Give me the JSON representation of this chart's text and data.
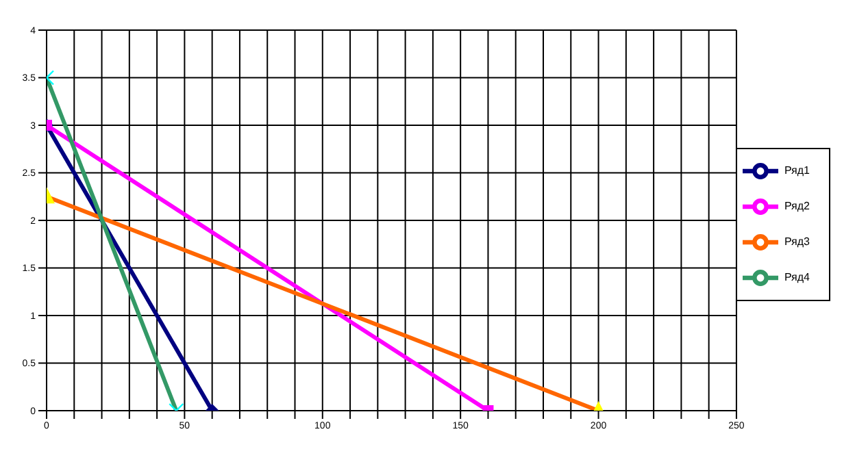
{
  "chart_data": {
    "type": "line",
    "series": [
      {
        "name": "Ряд1",
        "color": "#000080",
        "marker": "diamond",
        "x": [
          0,
          60
        ],
        "values": [
          3,
          0
        ]
      },
      {
        "name": "Ряд2",
        "color": "#ff00ff",
        "marker": "square",
        "x": [
          0,
          160
        ],
        "values": [
          3,
          0
        ]
      },
      {
        "name": "Ряд3",
        "color": "#ff6600",
        "marker": "triangle",
        "colors": [
          "#ffff00",
          "#ffff00"
        ],
        "x": [
          0,
          200
        ],
        "values": [
          2.25,
          0
        ]
      },
      {
        "name": "Ряд4",
        "color": "#339966",
        "marker": "cross",
        "colors": [
          "#00ffff",
          "#00ffff"
        ],
        "x": [
          0,
          47
        ],
        "values": [
          3.5,
          0
        ]
      }
    ],
    "xlim": [
      0,
      250
    ],
    "xticks": [
      0,
      {
        "value": 10,
        "label": null
      },
      {
        "value": 20,
        "label": null
      },
      {
        "value": 30,
        "label": null
      },
      {
        "value": 40,
        "label": null
      },
      50,
      {
        "value": 60,
        "label": null
      },
      {
        "value": 70,
        "label": null
      },
      {
        "value": 80,
        "label": null
      },
      {
        "value": 90,
        "label": null
      },
      100,
      {
        "value": 110,
        "label": null
      },
      {
        "value": 120,
        "label": null
      },
      {
        "value": 130,
        "label": null
      },
      {
        "value": 140,
        "label": null
      },
      150,
      {
        "value": 160,
        "label": null
      },
      {
        "value": 170,
        "label": null
      },
      {
        "value": 180,
        "label": null
      },
      {
        "value": 190,
        "label": null
      },
      200,
      {
        "value": 210,
        "label": null
      },
      {
        "value": 220,
        "label": null
      },
      {
        "value": 230,
        "label": null
      },
      {
        "value": 240,
        "label": null
      },
      250
    ],
    "ylim": [
      0,
      4
    ],
    "yticks": [
      0,
      0.5,
      1,
      1.5,
      2,
      2.5,
      3,
      3.5,
      4
    ],
    "grid": true,
    "legend": "right",
    "line_style": "solid"
  }
}
